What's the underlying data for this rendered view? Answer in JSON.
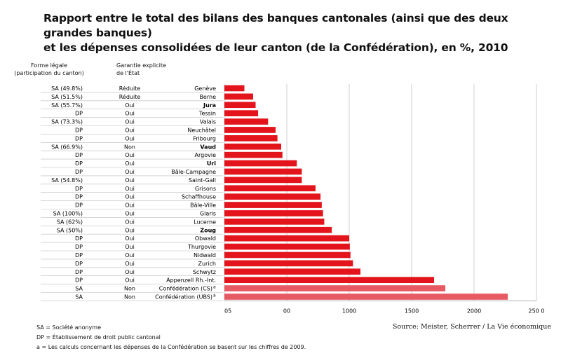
{
  "title_line1": "Rapport entre le total des bilans des banques cantonales (ainsi que des deux grandes banques)",
  "title_line2": "et les dépenses consolidées de leur canton (de la Confédération), en %, 2010",
  "col_headers": {
    "legal_form_line1": "Forme légale",
    "legal_form_line2": "(participation du canton)",
    "guarantee_line1": "Garantie explicite",
    "guarantee_line2": "de l'État"
  },
  "footnotes": {
    "sa": "SA = Société anonyme",
    "dp": "DP = Établissement de droit public cantonal",
    "a": "a  = Les calculs concernant les dépenses de la Confédération se basent sur les chiffres de 2009."
  },
  "source": "Source: Meister, Scherrer / La Vie économique",
  "colors": {
    "bar": "#e3141b",
    "bar_federal": "#e85a63",
    "grid": "#cfcfcf",
    "row_line": "#bdbdbd"
  },
  "chart_data": {
    "type": "bar",
    "orientation": "horizontal",
    "x_ticks": [
      "05",
      "00",
      "1000",
      "1500",
      "2000",
      "250 0"
    ],
    "x_tick_values": [
      0,
      500,
      1000,
      1500,
      2000,
      2500
    ],
    "xlim": [
      0,
      2500
    ],
    "grid": true,
    "rows": [
      {
        "category": "Genève",
        "legal_form": "SA (49.8%)",
        "guarantee": "Réduite",
        "value": 160
      },
      {
        "category": "Berne",
        "legal_form": "SA (51.5%)",
        "guarantee": "Réduite",
        "value": 230
      },
      {
        "category": "Jura",
        "legal_form": "SA (55.7%)",
        "guarantee": "Oui",
        "value": 250
      },
      {
        "category": "Tessin",
        "legal_form": "DP",
        "guarantee": "Oui",
        "value": 270
      },
      {
        "category": "Valais",
        "legal_form": "SA (73.3%)",
        "guarantee": "Oui",
        "value": 350
      },
      {
        "category": "Neuchâtel",
        "legal_form": "DP",
        "guarantee": "Oui",
        "value": 410
      },
      {
        "category": "Fribourg",
        "legal_form": "DP",
        "guarantee": "Oui",
        "value": 425
      },
      {
        "category": "Vaud",
        "legal_form": "SA (66.9%)",
        "guarantee": "Non",
        "value": 455
      },
      {
        "category": "Argovie",
        "legal_form": "DP",
        "guarantee": "Oui",
        "value": 465
      },
      {
        "category": "Uri",
        "legal_form": "DP",
        "guarantee": "Oui",
        "value": 580
      },
      {
        "category": "Bâle-Campagne",
        "legal_form": "DP",
        "guarantee": "Oui",
        "value": 620
      },
      {
        "category": "Saint-Gall",
        "legal_form": "SA (54.8%)",
        "guarantee": "Oui",
        "value": 620
      },
      {
        "category": "Grisons",
        "legal_form": "DP",
        "guarantee": "Oui",
        "value": 730
      },
      {
        "category": "Schaffhouse",
        "legal_form": "DP",
        "guarantee": "Oui",
        "value": 770
      },
      {
        "category": "Bâle-Ville",
        "legal_form": "DP",
        "guarantee": "Oui",
        "value": 780
      },
      {
        "category": "Glaris",
        "legal_form": "SA (100%)",
        "guarantee": "Oui",
        "value": 790
      },
      {
        "category": "Lucerne",
        "legal_form": "SA (62%)",
        "guarantee": "Oui",
        "value": 800
      },
      {
        "category": "Zoug",
        "legal_form": "SA (50%)",
        "guarantee": "Oui",
        "value": 860
      },
      {
        "category": "Obwald",
        "legal_form": "DP",
        "guarantee": "Oui",
        "value": 1000
      },
      {
        "category": "Thurgovie",
        "legal_form": "DP",
        "guarantee": "Oui",
        "value": 1005
      },
      {
        "category": "Nidwald",
        "legal_form": "DP",
        "guarantee": "Oui",
        "value": 1010
      },
      {
        "category": "Zurich",
        "legal_form": "DP",
        "guarantee": "Oui",
        "value": 1030
      },
      {
        "category": "Schwytz",
        "legal_form": "DP",
        "guarantee": "Oui",
        "value": 1090
      },
      {
        "category": "Appenzell Rh.-Int.",
        "legal_form": "DP",
        "guarantee": "Oui",
        "value": 1680
      },
      {
        "category": "Confédération (CS)",
        "superscript": "a",
        "legal_form": "SA",
        "guarantee": "Non",
        "value": 1770,
        "federal": true
      },
      {
        "category": "Confédération (UBS)",
        "superscript": "a",
        "legal_form": "SA",
        "guarantee": "Non",
        "value": 2270,
        "federal": true
      }
    ]
  }
}
